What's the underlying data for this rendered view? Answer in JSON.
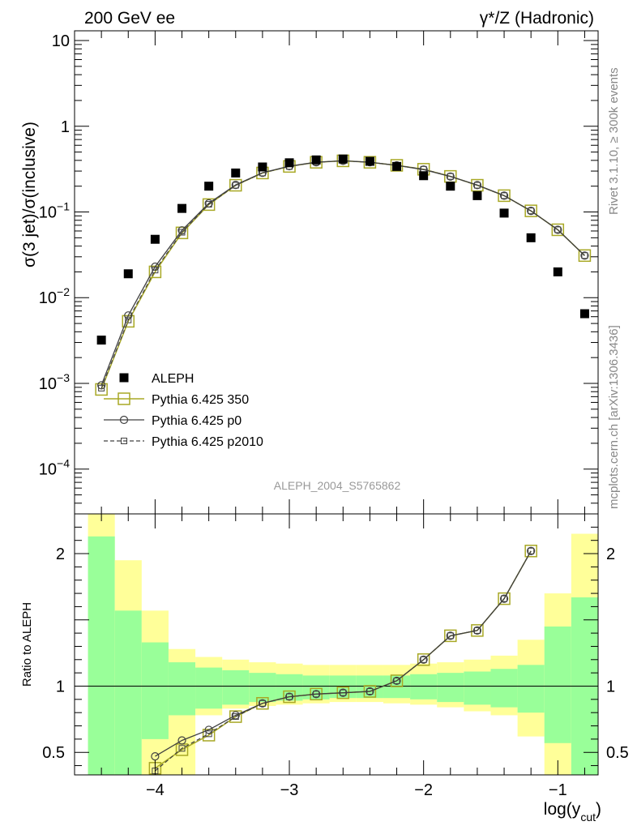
{
  "header": {
    "left_label": "200 GeV ee",
    "right_label": "γ*/Z (Hadronic)",
    "side_label_top": "Rivet 3.1.10, ≥ 300k events",
    "side_label_bottom": "mcplots.cern.ch [arXiv:1306.3436]",
    "analysis_label": "ALEPH_2004_S5765862"
  },
  "colors": {
    "data": "#000000",
    "py350": "#a8a825",
    "p0": "#404040",
    "p2010": "#404040",
    "band_inner": "#99ff99",
    "band_outer": "#ffff99"
  },
  "chart_data": [
    {
      "type": "scatter",
      "title": "",
      "ylabel": "σ(3 jet)/σ(inclusive)",
      "xlabel": "",
      "yscale": "log",
      "ylim": [
        3e-05,
        13
      ],
      "xlim": [
        -4.6,
        -0.7
      ],
      "y_ticks": [
        "10",
        "1",
        "10−1",
        "10−2",
        "10−3",
        "10−4"
      ],
      "legend": {
        "placement": "bottom-left",
        "entries": [
          "ALEPH",
          "Pythia 6.425 350",
          "Pythia 6.425 p0",
          "Pythia 6.425 p2010"
        ]
      },
      "x": [
        -4.4,
        -4.2,
        -4.0,
        -3.8,
        -3.6,
        -3.4,
        -3.2,
        -3.0,
        -2.8,
        -2.6,
        -2.4,
        -2.2,
        -2.0,
        -1.8,
        -1.6,
        -1.4,
        -1.2,
        -1.0,
        -0.8
      ],
      "series": [
        {
          "name": "ALEPH",
          "style": "data",
          "values": [
            0.0032,
            0.019,
            0.048,
            0.11,
            0.2,
            0.285,
            0.335,
            0.375,
            0.405,
            0.415,
            0.39,
            0.34,
            0.265,
            0.2,
            0.155,
            0.097,
            0.05,
            0.02,
            0.0065
          ]
        },
        {
          "name": "Pythia 6.425 350",
          "style": "py350",
          "values": [
            0.00085,
            0.0053,
            0.02,
            0.057,
            0.122,
            0.205,
            0.285,
            0.34,
            0.38,
            0.395,
            0.38,
            0.35,
            0.315,
            0.26,
            0.205,
            0.155,
            0.103,
            0.062,
            0.031
          ]
        },
        {
          "name": "Pythia 6.425 p0",
          "style": "p0",
          "values": [
            0.00095,
            0.0062,
            0.023,
            0.061,
            0.126,
            0.207,
            0.287,
            0.342,
            0.381,
            0.395,
            0.381,
            0.35,
            0.312,
            0.259,
            0.206,
            0.155,
            0.103,
            0.062,
            0.031
          ]
        },
        {
          "name": "Pythia 6.425 p2010",
          "style": "p2010",
          "values": [
            0.00088,
            0.0055,
            0.021,
            0.058,
            0.123,
            0.205,
            0.285,
            0.34,
            0.38,
            0.395,
            0.38,
            0.35,
            0.315,
            0.26,
            0.205,
            0.155,
            0.103,
            0.062,
            0.031
          ]
        }
      ]
    },
    {
      "type": "line",
      "title": "",
      "ylabel": "Ratio to ALEPH",
      "xlabel": "log(ycut)",
      "xlabel_main": "log(y",
      "xlabel_sub": "cut",
      "xlabel_close": ")",
      "ylim": [
        0.33,
        2.3
      ],
      "xlim": [
        -4.6,
        -0.7
      ],
      "x_ticks": [
        "−4",
        "−3",
        "−2",
        "−1"
      ],
      "y_ticks": [
        "2",
        "1",
        "0.5"
      ],
      "bands": {
        "bin_edges": [
          -4.5,
          -4.3,
          -4.1,
          -3.9,
          -3.7,
          -3.5,
          -3.3,
          -3.1,
          -2.9,
          -2.7,
          -2.5,
          -2.3,
          -2.1,
          -1.9,
          -1.7,
          -1.5,
          -1.3,
          -1.1,
          -0.9,
          -0.7
        ],
        "inner_upper": [
          2.13,
          1.57,
          1.33,
          1.18,
          1.14,
          1.12,
          1.1,
          1.09,
          1.08,
          1.08,
          1.08,
          1.08,
          1.09,
          1.1,
          1.11,
          1.13,
          1.16,
          1.45,
          1.67
        ],
        "inner_lower": [
          0.33,
          0.33,
          0.6,
          0.78,
          0.83,
          0.86,
          0.88,
          0.89,
          0.9,
          0.91,
          0.91,
          0.91,
          0.9,
          0.88,
          0.86,
          0.84,
          0.8,
          0.57,
          0.33
        ],
        "outer_upper": [
          2.3,
          1.95,
          1.57,
          1.28,
          1.22,
          1.2,
          1.18,
          1.17,
          1.16,
          1.16,
          1.16,
          1.16,
          1.17,
          1.18,
          1.2,
          1.23,
          1.35,
          1.7,
          2.15
        ],
        "outer_lower": [
          0.33,
          0.33,
          0.33,
          0.33,
          0.78,
          0.83,
          0.85,
          0.86,
          0.87,
          0.88,
          0.88,
          0.87,
          0.86,
          0.84,
          0.81,
          0.78,
          0.62,
          0.33,
          0.33
        ]
      },
      "x": [
        -4.4,
        -4.2,
        -4.0,
        -3.8,
        -3.6,
        -3.4,
        -3.2,
        -3.0,
        -2.8,
        -2.6,
        -2.4,
        -2.2,
        -2.0,
        -1.8,
        -1.6,
        -1.4,
        -1.2,
        -1.0,
        -0.8
      ],
      "series": [
        {
          "name": "Pythia 6.425 350",
          "style": "py350",
          "values": [
            null,
            null,
            0.38,
            0.52,
            0.63,
            0.77,
            0.87,
            0.92,
            0.94,
            0.95,
            0.96,
            1.04,
            1.2,
            1.38,
            1.42,
            1.66,
            2.02,
            null,
            null
          ]
        },
        {
          "name": "Pythia 6.425 p0",
          "style": "p0",
          "values": [
            null,
            null,
            0.47,
            0.59,
            0.67,
            0.78,
            0.87,
            0.92,
            0.94,
            0.95,
            0.96,
            1.04,
            1.2,
            1.38,
            1.42,
            1.66,
            2.02,
            null,
            null
          ]
        },
        {
          "name": "Pythia 6.425 p2010",
          "style": "p2010",
          "values": [
            null,
            null,
            0.36,
            0.53,
            0.64,
            0.77,
            0.87,
            0.92,
            0.94,
            0.95,
            0.96,
            1.04,
            1.2,
            1.38,
            1.42,
            1.66,
            2.02,
            null,
            null
          ]
        }
      ]
    }
  ]
}
